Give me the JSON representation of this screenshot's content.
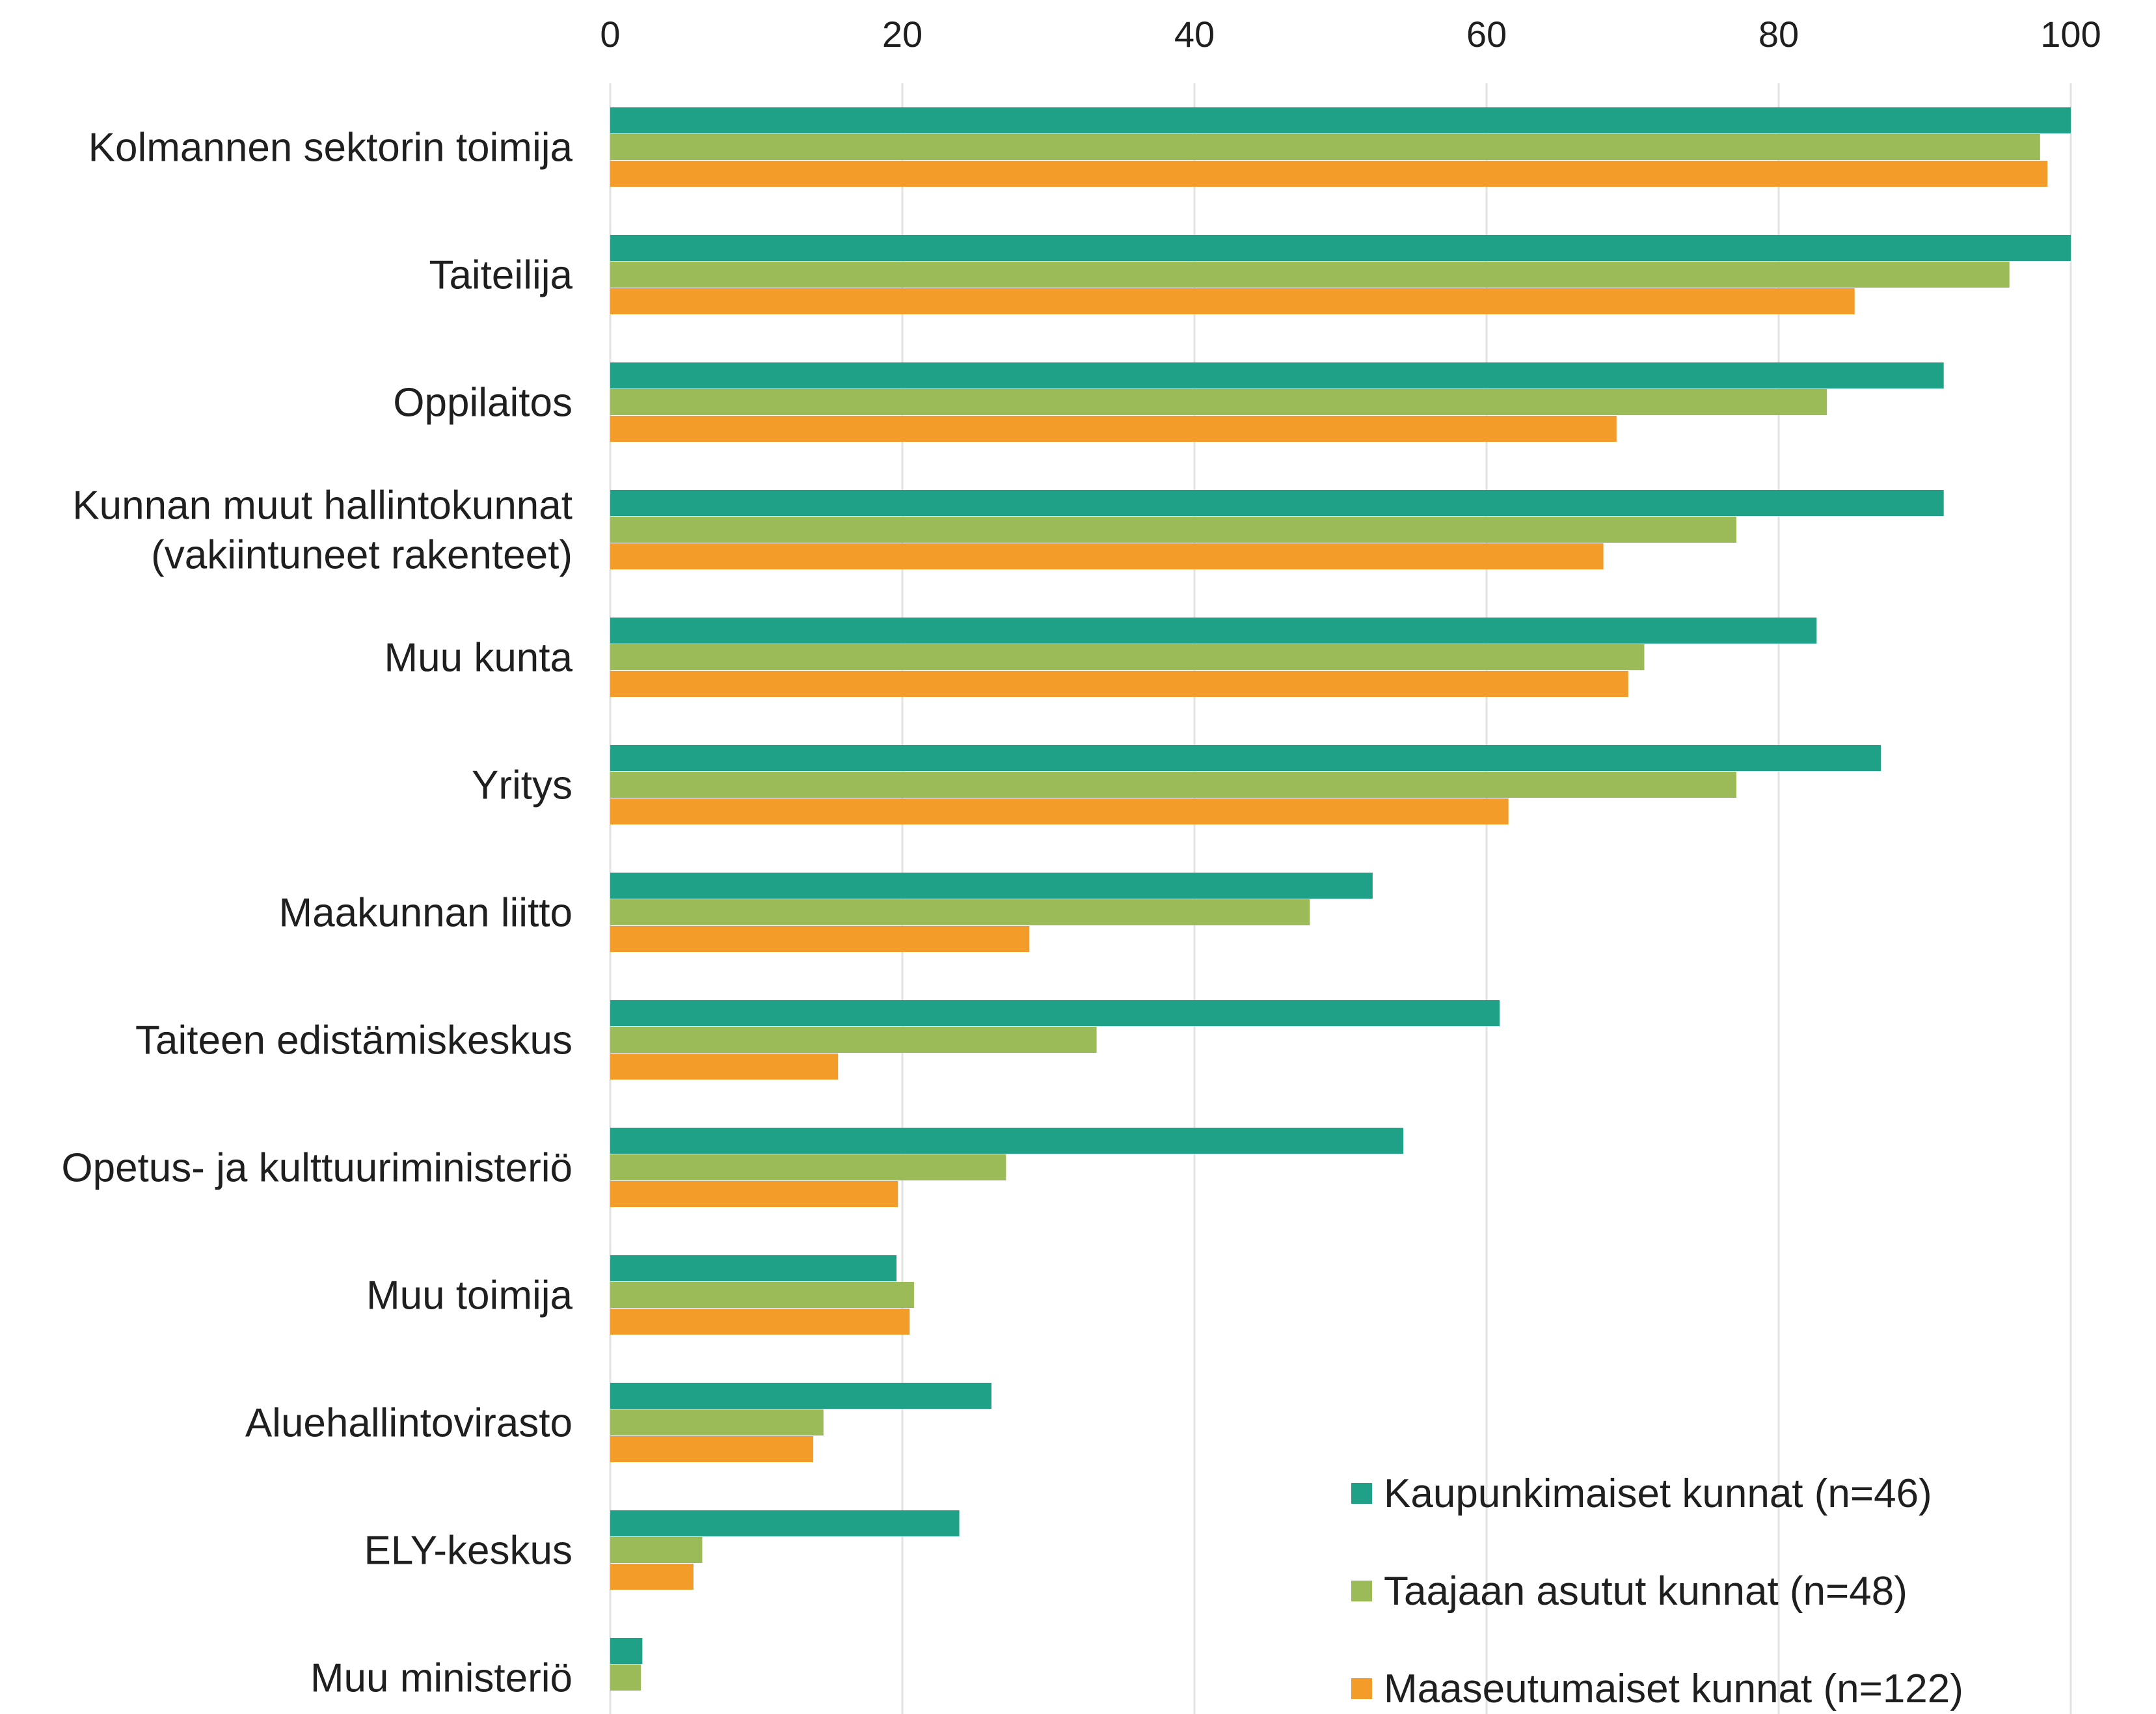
{
  "chart_data": {
    "type": "bar",
    "orientation": "horizontal",
    "title": "",
    "xlabel": "",
    "ylabel": "",
    "xlim": [
      0,
      100
    ],
    "x_ticks": [
      "0",
      "20",
      "40",
      "60",
      "80",
      "100"
    ],
    "grid": true,
    "legend_position": "bottom-right",
    "categories": [
      "Kolmannen sektorin toimija",
      "Taiteilija",
      "Oppilaitos",
      "Kunnan muut hallintokunnat (vakiintuneet rakenteet)",
      "Muu kunta",
      "Yritys",
      "Maakunnan liitto",
      "Taiteen edistämiskeskus",
      "Opetus- ja kulttuuriministeriö",
      "Muu toimija",
      "Aluehallintovirasto",
      "ELY-keskus",
      "Muu ministeriö"
    ],
    "category_lines": [
      [
        "Kolmannen sektorin toimija"
      ],
      [
        "Taiteilija"
      ],
      [
        "Oppilaitos"
      ],
      [
        "Kunnan muut hallintokunnat",
        "(vakiintuneet rakenteet)"
      ],
      [
        "Muu kunta"
      ],
      [
        "Yritys"
      ],
      [
        "Maakunnan liitto"
      ],
      [
        "Taiteen edistämiskeskus"
      ],
      [
        "Opetus- ja kulttuuriministeriö"
      ],
      [
        "Muu toimija"
      ],
      [
        "Aluehallintovirasto"
      ],
      [
        "ELY-keskus"
      ],
      [
        "Muu ministeriö"
      ]
    ],
    "series": [
      {
        "name": "Kaupunkimaiset kunnat (n=46)",
        "color": "#1fa187",
        "values": [
          100,
          100,
          91.3,
          91.3,
          82.6,
          87.0,
          52.2,
          60.9,
          54.3,
          19.6,
          26.1,
          23.9,
          2.2
        ]
      },
      {
        "name": "Taajaan asutut kunnat (n=48)",
        "color": "#9bbb59",
        "values": [
          97.9,
          95.8,
          83.3,
          77.1,
          70.8,
          77.1,
          47.9,
          33.3,
          27.1,
          20.8,
          14.6,
          6.3,
          2.1
        ]
      },
      {
        "name": "Maaseutumaiset kunnat (n=122)",
        "color": "#f39c2a",
        "values": [
          98.4,
          85.2,
          68.9,
          68.0,
          69.7,
          61.5,
          28.7,
          15.6,
          19.7,
          20.5,
          13.9,
          5.7,
          0
        ]
      }
    ]
  }
}
